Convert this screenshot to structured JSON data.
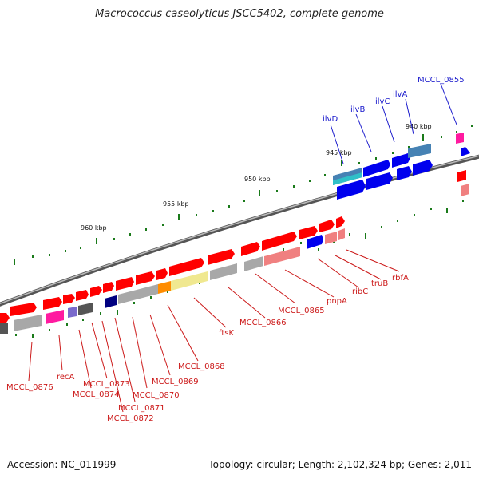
{
  "title": "Macrococcus caseolyticus JSCC5402, complete genome",
  "footer": {
    "accession": "Accession: NC_011999",
    "info": "Topology: circular; Length: 2,102,324 bp; Genes: 2,011"
  },
  "kbp_labels": [
    "940 kbp",
    "945 kbp",
    "950 kbp",
    "955 kbp",
    "960 kbp"
  ],
  "gene_labels_blue": [
    "ilvD",
    "ilvB",
    "ilvC",
    "ilvA",
    "MCCL_0855"
  ],
  "gene_labels_red": [
    "rbfA",
    "truB",
    "ribC",
    "pnpA",
    "MCCL_0865",
    "MCCL_0866",
    "ftsK",
    "MCCL_0868",
    "MCCL_0869",
    "MCCL_0870",
    "MCCL_0871",
    "MCCL_0872",
    "MCCL_0873",
    "MCCL_0874",
    "recA",
    "MCCL_0876"
  ],
  "colors": {
    "backbone": "#777777",
    "tick": "#1a7a1a",
    "blue_label": "#1a1acc",
    "red_label": "#cc1a1a",
    "gene_red": "#ff0000",
    "gene_blue": "#0000ee",
    "gene_pink": "#f08080",
    "gene_gray": "#a8a8a8",
    "gene_magenta": "#ff1aa0",
    "gene_yellow": "#f0e890",
    "gene_orange": "#ff8c00",
    "gene_steel": "#4682b4",
    "gene_cyan": "#30c0c8",
    "gene_violet": "#7a6acc",
    "gene_navy": "#000080",
    "gene_dark": "#555555"
  }
}
